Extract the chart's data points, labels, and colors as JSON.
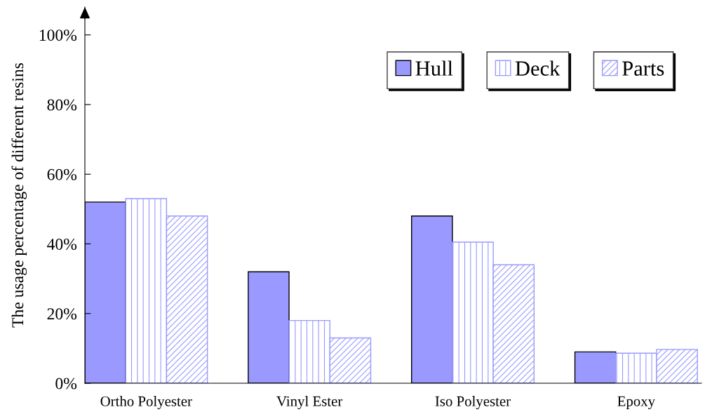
{
  "chart_data": {
    "type": "bar",
    "ylabel": "The usage percentage of different resins",
    "categories": [
      "Ortho Polyester",
      "Vinyl Ester",
      "Iso Polyester",
      "Epoxy"
    ],
    "series": [
      {
        "name": "Hull",
        "color": "#9999ff",
        "values": [
          52,
          32,
          48,
          9
        ]
      },
      {
        "name": "Deck",
        "color": "#9999ff",
        "values": [
          53,
          18,
          40.5,
          8.6
        ]
      },
      {
        "name": "Parts",
        "color": "#9999ff",
        "values": [
          48,
          13,
          34,
          9.7
        ]
      }
    ],
    "ylim": [
      0,
      108
    ],
    "yticks": [
      {
        "value": 0,
        "label": "0%"
      },
      {
        "value": 20,
        "label": "20%"
      },
      {
        "value": 40,
        "label": "40%"
      },
      {
        "value": 60,
        "label": "60%"
      },
      {
        "value": 80,
        "label": "80%"
      },
      {
        "value": 100,
        "label": "100%"
      }
    ],
    "grid": false,
    "legend": "top right"
  }
}
